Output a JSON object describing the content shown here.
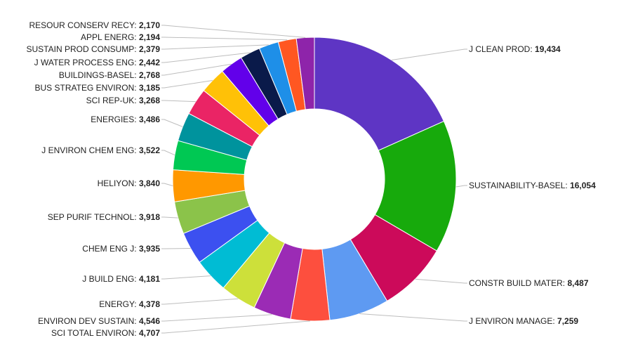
{
  "chart_data": {
    "type": "pie",
    "donut": true,
    "title": "",
    "legend": "none",
    "slices": [
      {
        "label": "J CLEAN PROD",
        "display": "19,434",
        "value": 19434,
        "color": "#5e35c4"
      },
      {
        "label": "SUSTAINABILITY-BASEL",
        "display": "16,054",
        "value": 16054,
        "color": "#17aa0c"
      },
      {
        "label": "CONSTR BUILD MATER",
        "display": "8,487",
        "value": 8487,
        "color": "#cc0a5a"
      },
      {
        "label": "J ENVIRON MANAGE",
        "display": "7,259",
        "value": 7259,
        "color": "#5e9af2"
      },
      {
        "label": "SCI TOTAL ENVIRON",
        "display": "4,707",
        "value": 4707,
        "color": "#fd4f3e"
      },
      {
        "label": "ENVIRON DEV SUSTAIN",
        "display": "4,546",
        "value": 4546,
        "color": "#9b2bb5"
      },
      {
        "label": "ENERGY",
        "display": "4,378",
        "value": 4378,
        "color": "#cde03a"
      },
      {
        "label": "J BUILD ENG",
        "display": "4,181",
        "value": 4181,
        "color": "#00bcd4"
      },
      {
        "label": "CHEM ENG J",
        "display": "3,935",
        "value": 3935,
        "color": "#3c50f0"
      },
      {
        "label": "SEP PURIF TECHNOL",
        "display": "3,918",
        "value": 3918,
        "color": "#8bc34a"
      },
      {
        "label": "HELIYON",
        "display": "3,840",
        "value": 3840,
        "color": "#ff9800"
      },
      {
        "label": "J ENVIRON CHEM ENG",
        "display": "3,522",
        "value": 3522,
        "color": "#00c853"
      },
      {
        "label": "ENERGIES",
        "display": "3,486",
        "value": 3486,
        "color": "#00939d"
      },
      {
        "label": "SCI REP-UK",
        "display": "3,268",
        "value": 3268,
        "color": "#ea2465"
      },
      {
        "label": "BUS STRATEG ENVIRON",
        "display": "3,185",
        "value": 3185,
        "color": "#ffc107"
      },
      {
        "label": "BUILDINGS-BASEL",
        "display": "2,768",
        "value": 2768,
        "color": "#6200ea"
      },
      {
        "label": "J WATER PROCESS ENG",
        "display": "2,442",
        "value": 2442,
        "color": "#0a1a4a"
      },
      {
        "label": "SUSTAIN PROD CONSUMP",
        "display": "2,379",
        "value": 2379,
        "color": "#1e8fe8"
      },
      {
        "label": "APPL ENERG",
        "display": "2,194",
        "value": 2194,
        "color": "#ff5722"
      },
      {
        "label": "RESOUR CONSERV RECY",
        "display": "2,170",
        "value": 2170,
        "color": "#8e24aa"
      }
    ]
  }
}
